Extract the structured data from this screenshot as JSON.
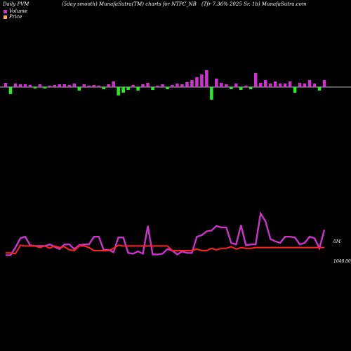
{
  "header": {
    "left": "Daily PVM",
    "center": "(5day smooth) MunafaSutra(TM) charts for NTPC_NB",
    "right": "(Tfr 7.36% 2025 Sr. 1b) MunafaSutra.com"
  },
  "legend": [
    {
      "label": "Volume",
      "color": "#cc33cc"
    },
    {
      "label": "Price",
      "color": "#ff3333"
    }
  ],
  "colors": {
    "volume_up": "#cc33cc",
    "volume_down": "#22ee22",
    "baseline": "#bbbbbb",
    "volume_line": "#cc33cc",
    "price_line": "#ff2222"
  },
  "chart_data": [
    {
      "type": "bar",
      "title": "Volume",
      "x": [
        1,
        2,
        3,
        4,
        5,
        6,
        7,
        8,
        9,
        10,
        11,
        12,
        13,
        14,
        15,
        16,
        17,
        18,
        19,
        20,
        21,
        22,
        23,
        24,
        25,
        26,
        27,
        28,
        29,
        30,
        31,
        32,
        33,
        34,
        35,
        36,
        37,
        38,
        39,
        40,
        41,
        42,
        43,
        44,
        45,
        46,
        47,
        48,
        49,
        50,
        51,
        52,
        53,
        54,
        55,
        56,
        57,
        58,
        59,
        60,
        61,
        62,
        63,
        64,
        65,
        66
      ],
      "values": [
        6,
        -10,
        5,
        4,
        4,
        3,
        -2,
        4,
        -2,
        2,
        3,
        4,
        4,
        3,
        5,
        -5,
        4,
        2,
        3,
        2,
        -3,
        4,
        8,
        -12,
        -8,
        -4,
        3,
        -5,
        4,
        6,
        -4,
        2,
        4,
        -3,
        3,
        5,
        4,
        7,
        10,
        14,
        18,
        24,
        -18,
        12,
        6,
        4,
        -3,
        5,
        -4,
        2,
        -3,
        20,
        6,
        10,
        5,
        8,
        5,
        5,
        8,
        -8,
        6,
        5,
        10,
        5,
        -5,
        10
      ],
      "color_rule": "positive magenta, negative green"
    },
    {
      "type": "line",
      "series": [
        {
          "name": "Volume",
          "values": [
            24,
            24,
            34,
            46,
            48,
            37,
            36,
            36,
            36,
            38,
            35,
            32,
            38,
            38,
            32,
            37,
            38,
            38,
            48,
            48,
            31,
            31,
            28,
            47,
            47,
            27,
            26,
            29,
            26,
            62,
            25,
            25,
            26,
            32,
            30,
            25,
            29,
            27,
            27,
            48,
            50,
            55,
            56,
            62,
            60,
            60,
            40,
            38,
            63,
            37,
            38,
            38,
            78,
            68,
            45,
            42,
            40,
            48,
            48,
            47,
            38,
            40,
            48,
            46,
            33,
            57
          ],
          "color": "#cc33cc"
        },
        {
          "name": "Price",
          "values": [
            27,
            27,
            26,
            37,
            36,
            36,
            36,
            34,
            36,
            33,
            36,
            34,
            35,
            31,
            30,
            36,
            36,
            34,
            30,
            30,
            30,
            30,
            33,
            37,
            36,
            36,
            36,
            36,
            36,
            36,
            36,
            36,
            36,
            36,
            30,
            30,
            30,
            30,
            30,
            32,
            30,
            30,
            33,
            31,
            33,
            33,
            35,
            32,
            34,
            33,
            33,
            34,
            34,
            34,
            34,
            34,
            34,
            34,
            34,
            34,
            34,
            34,
            34,
            34,
            34,
            34
          ],
          "color": "#ff2222"
        }
      ],
      "right_labels": [
        "0M",
        "1048.00"
      ]
    }
  ]
}
